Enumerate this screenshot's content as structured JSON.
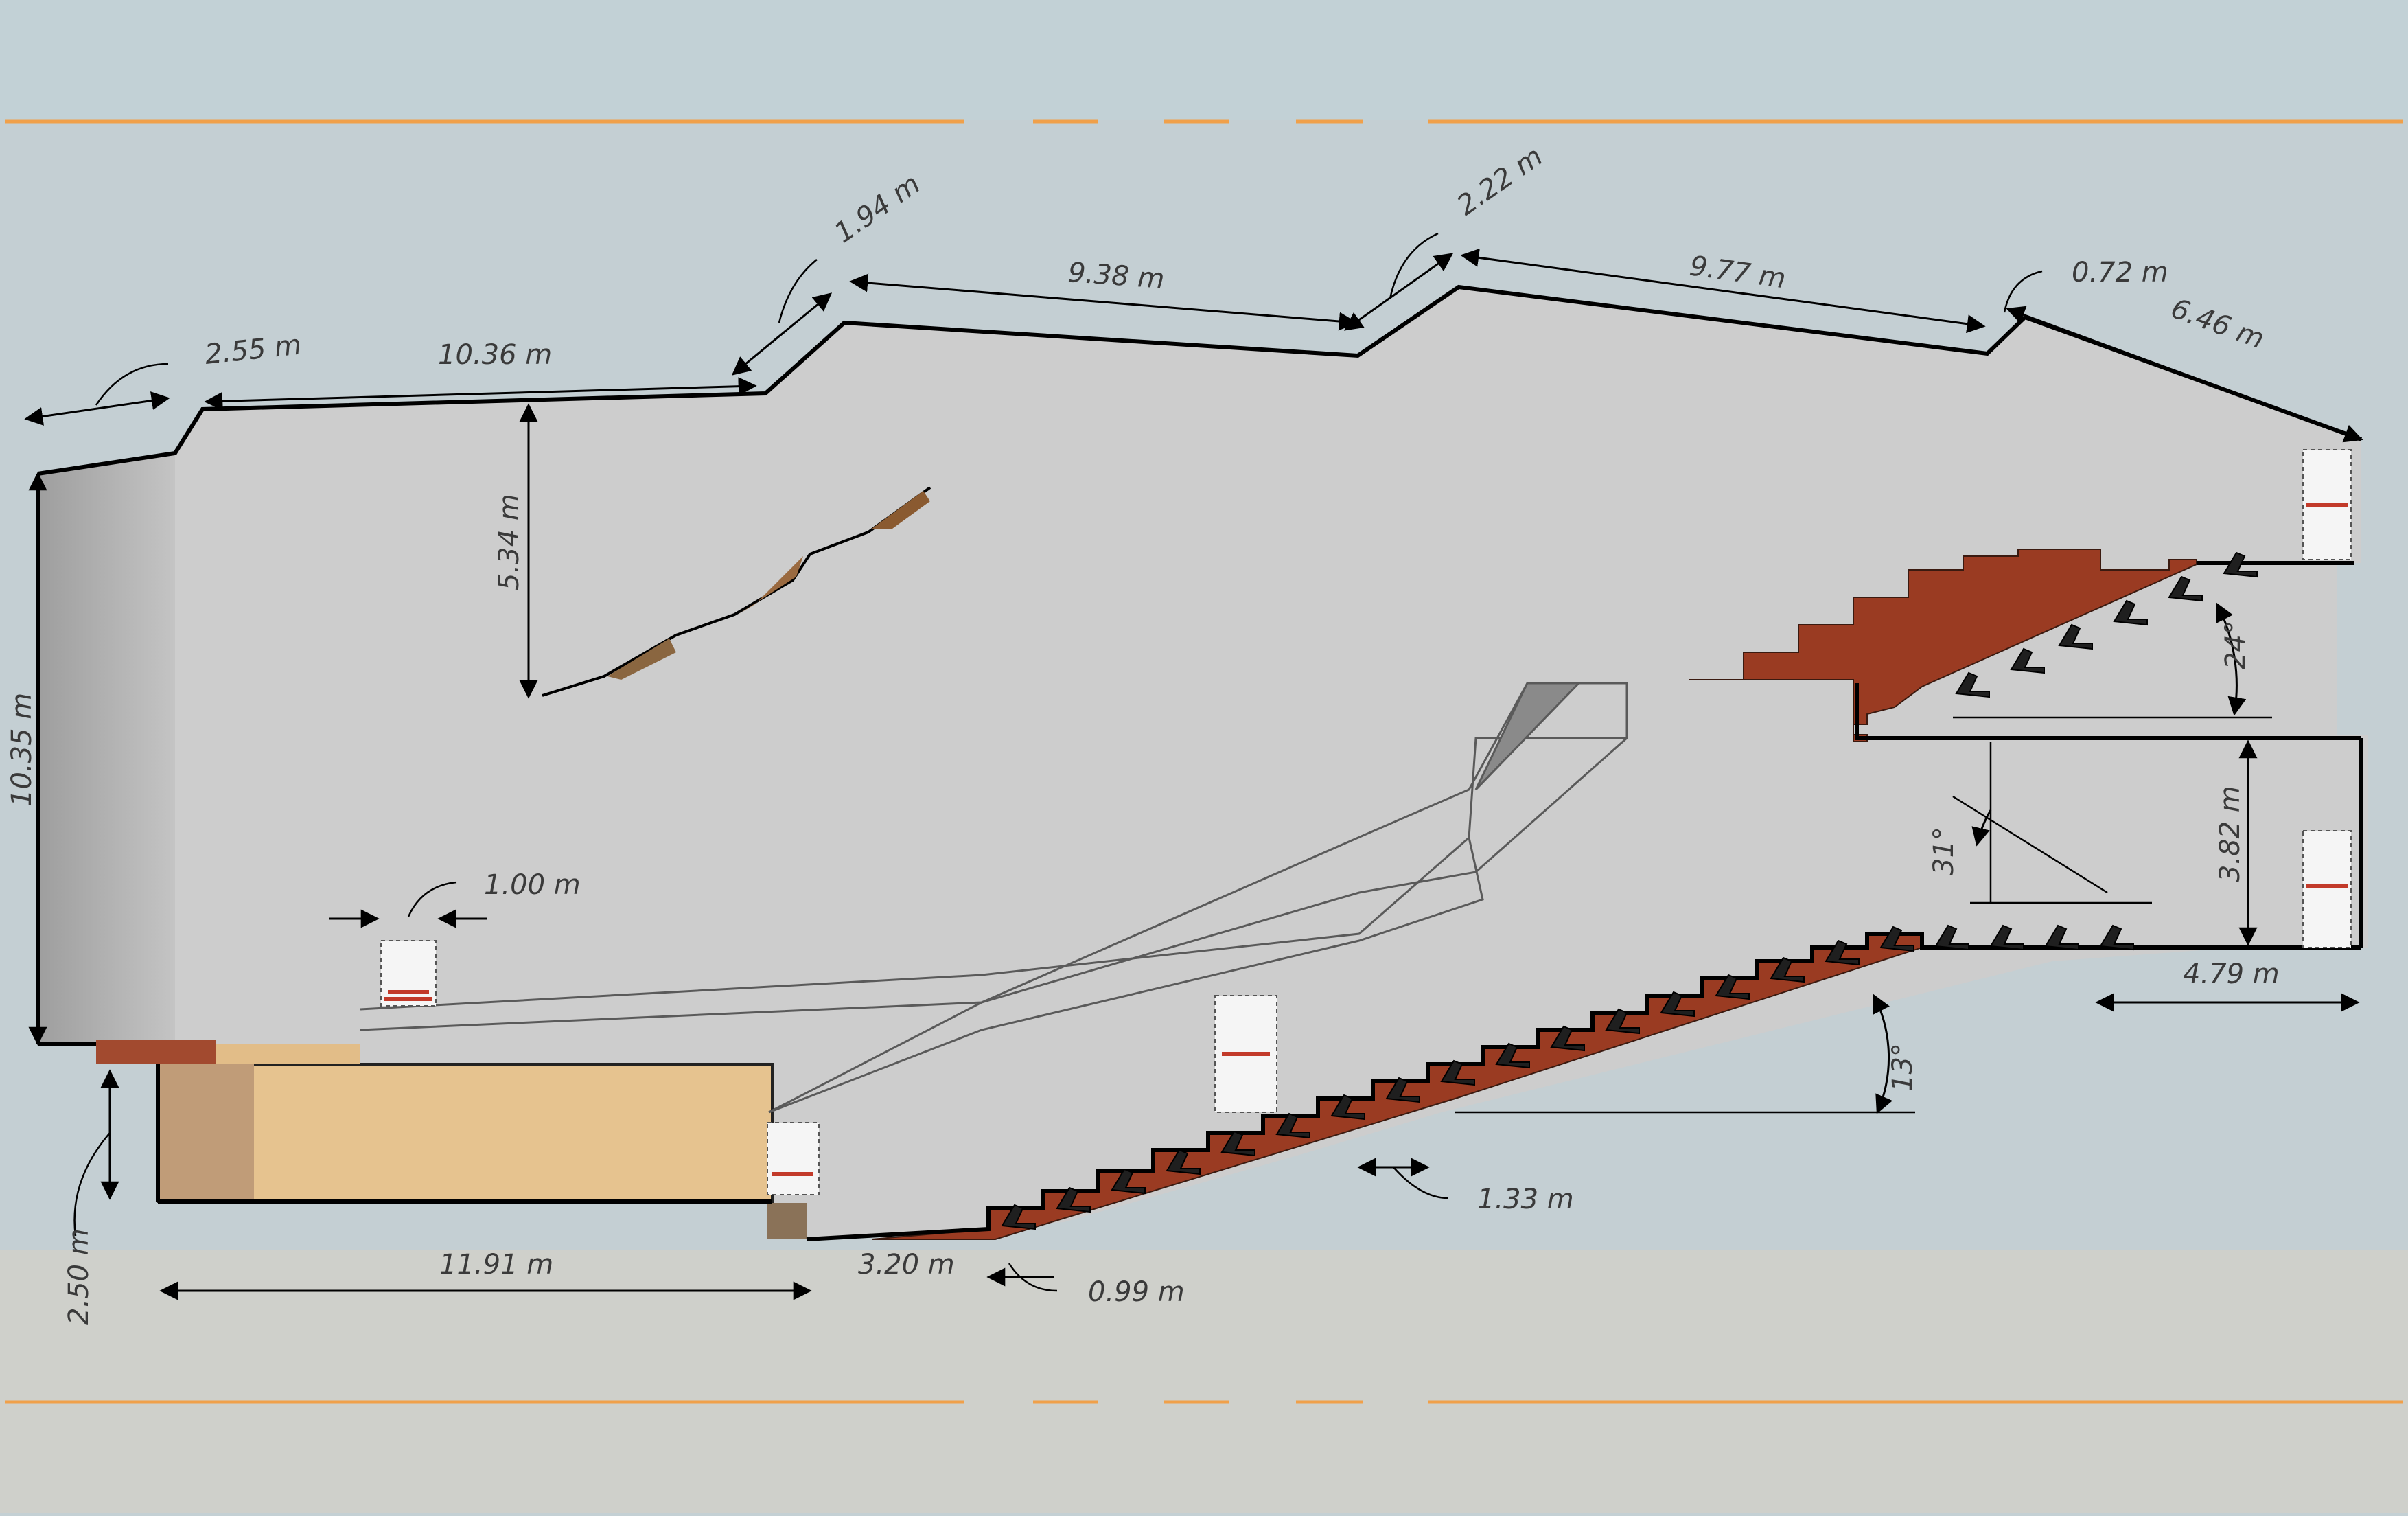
{
  "measurements": {
    "hall_left_height": "10.35 m",
    "roof_segment_a": "2.55 m",
    "roof_segment_b": "10.36 m",
    "roof_step_1": "1.94 m",
    "roof_segment_c": "9.38 m",
    "roof_step_2": "2.22 m",
    "roof_segment_d": "9.77 m",
    "roof_step_3": "0.72 m",
    "roof_segment_e": "6.46 m",
    "reflector_height": "5.34 m",
    "stage_door_width": "1.00 m",
    "stage_height": "2.50 m",
    "stage_depth": "11.91 m",
    "pit_width": "3.20 m",
    "first_row_step": "0.99 m",
    "row_depth": "1.33 m",
    "stalls_rake": "13°",
    "balcony_sightline": "31°",
    "balcony_rake": "24°",
    "balcony_clearance": "3.82 m",
    "balcony_overhang": "4.79 m"
  },
  "colors": {
    "sky": "#c4d0d4",
    "hall_fill": "#cdcdcd",
    "ground": "#cfcfcb",
    "level_line": "#f0a04a",
    "stage_wood": "#e6c38f",
    "seating_wood": "#9a3b22",
    "seat": "#1f1f1f"
  }
}
